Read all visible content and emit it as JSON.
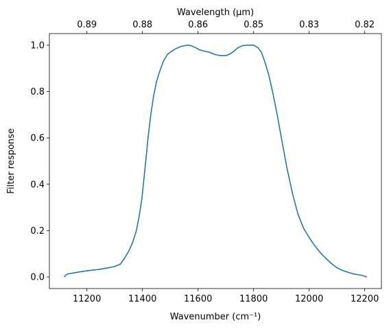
{
  "chart_data": {
    "type": "line",
    "xlabel": "Wavenumber (cm⁻¹)",
    "ylabel": "Filter response",
    "x2label": "Wavelength (μm)",
    "xlim": [
      11065,
      12260
    ],
    "ylim": [
      -0.05,
      1.05
    ],
    "xticks": [
      11200,
      11400,
      11600,
      11800,
      12000,
      12200
    ],
    "xtick_labels": [
      "11200",
      "11400",
      "11600",
      "11800",
      "12000",
      "12200"
    ],
    "yticks": [
      0.0,
      0.2,
      0.4,
      0.6,
      0.8,
      1.0
    ],
    "ytick_labels": [
      "0.0",
      "0.2",
      "0.4",
      "0.6",
      "0.8",
      "1.0"
    ],
    "x2ticks": [
      0.89,
      0.88,
      0.86,
      0.85,
      0.83,
      0.82
    ],
    "x2tick_positions": [
      11200,
      11400,
      11600,
      11800,
      12000,
      12200
    ],
    "x2tick_labels": [
      "0.89",
      "0.88",
      "0.86",
      "0.85",
      "0.83",
      "0.82"
    ],
    "grid": false,
    "colors": {
      "line": "#1f77b4"
    },
    "series": [
      {
        "x": [
          11118,
          11128,
          11150,
          11180,
          11210,
          11240,
          11270,
          11300,
          11320,
          11335,
          11350,
          11365,
          11378,
          11388,
          11398,
          11405,
          11412,
          11420,
          11430,
          11440,
          11450,
          11460,
          11475,
          11490,
          11500,
          11520,
          11540,
          11560,
          11575,
          11590,
          11605,
          11620,
          11640,
          11660,
          11680,
          11700,
          11715,
          11730,
          11745,
          11760,
          11780,
          11800,
          11815,
          11828,
          11840,
          11855,
          11870,
          11885,
          11900,
          11920,
          11940,
          11960,
          11980,
          12000,
          12020,
          12040,
          12060,
          12080,
          12100,
          12120,
          12140,
          12160,
          12180,
          12195,
          12202,
          12208
        ],
        "y": [
          0.0,
          0.012,
          0.017,
          0.023,
          0.028,
          0.032,
          0.038,
          0.045,
          0.055,
          0.08,
          0.11,
          0.15,
          0.2,
          0.26,
          0.34,
          0.42,
          0.5,
          0.6,
          0.7,
          0.78,
          0.84,
          0.88,
          0.93,
          0.96,
          0.97,
          0.985,
          0.995,
          1.0,
          0.998,
          0.99,
          0.98,
          0.975,
          0.97,
          0.96,
          0.955,
          0.955,
          0.962,
          0.975,
          0.99,
          0.998,
          1.0,
          1.0,
          0.99,
          0.97,
          0.93,
          0.87,
          0.79,
          0.7,
          0.6,
          0.47,
          0.36,
          0.27,
          0.21,
          0.17,
          0.135,
          0.105,
          0.08,
          0.058,
          0.04,
          0.028,
          0.02,
          0.013,
          0.009,
          0.005,
          0.002,
          0.0
        ]
      }
    ]
  }
}
